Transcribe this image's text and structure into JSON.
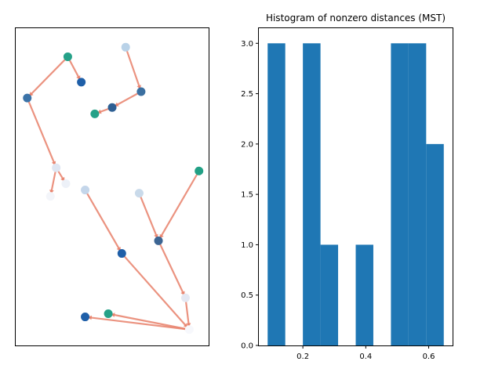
{
  "chart_data": [
    {
      "type": "scatter",
      "title": "",
      "xticks": [],
      "yticks": [],
      "points": [
        {
          "x": 0.57,
          "y": 0.94,
          "color": "#b9d2e8"
        },
        {
          "x": 0.27,
          "y": 0.91,
          "color": "#25a188"
        },
        {
          "x": 0.34,
          "y": 0.83,
          "color": "#1f5fa8"
        },
        {
          "x": 0.06,
          "y": 0.78,
          "color": "#3b73a8"
        },
        {
          "x": 0.65,
          "y": 0.8,
          "color": "#3b6fa0"
        },
        {
          "x": 0.5,
          "y": 0.75,
          "color": "#2e5f93"
        },
        {
          "x": 0.41,
          "y": 0.73,
          "color": "#25a188"
        },
        {
          "x": 0.95,
          "y": 0.55,
          "color": "#22a085"
        },
        {
          "x": 0.21,
          "y": 0.56,
          "color": "#dfe6f2"
        },
        {
          "x": 0.26,
          "y": 0.51,
          "color": "#edf1f8"
        },
        {
          "x": 0.18,
          "y": 0.47,
          "color": "#f3f5fa"
        },
        {
          "x": 0.36,
          "y": 0.49,
          "color": "#c4d6ea"
        },
        {
          "x": 0.64,
          "y": 0.48,
          "color": "#c9daea"
        },
        {
          "x": 0.74,
          "y": 0.33,
          "color": "#3c6593"
        },
        {
          "x": 0.55,
          "y": 0.29,
          "color": "#1f5fa8"
        },
        {
          "x": 0.88,
          "y": 0.15,
          "color": "#e4e8f3"
        },
        {
          "x": 0.9,
          "y": 0.05,
          "color": "#f7f8fc"
        },
        {
          "x": 0.36,
          "y": 0.09,
          "color": "#1f5fa8"
        },
        {
          "x": 0.48,
          "y": 0.1,
          "color": "#25a188"
        }
      ],
      "edges": [
        [
          1,
          2
        ],
        [
          1,
          3
        ],
        [
          3,
          8
        ],
        [
          8,
          9
        ],
        [
          8,
          10
        ],
        [
          0,
          4
        ],
        [
          4,
          5
        ],
        [
          5,
          6
        ],
        [
          11,
          14
        ],
        [
          14,
          16
        ],
        [
          16,
          17
        ],
        [
          16,
          18
        ],
        [
          7,
          13
        ],
        [
          12,
          13
        ],
        [
          13,
          15
        ],
        [
          15,
          16
        ]
      ],
      "edge_color": "#e8806a"
    },
    {
      "type": "bar",
      "title": "Histogram of nonzero distances (MST)",
      "bins": [
        {
          "x0": 0.088,
          "x1": 0.144,
          "count": 3
        },
        {
          "x0": 0.144,
          "x1": 0.2,
          "count": 0
        },
        {
          "x0": 0.2,
          "x1": 0.256,
          "count": 3
        },
        {
          "x0": 0.256,
          "x1": 0.312,
          "count": 1
        },
        {
          "x0": 0.312,
          "x1": 0.368,
          "count": 0
        },
        {
          "x0": 0.368,
          "x1": 0.424,
          "count": 1
        },
        {
          "x0": 0.424,
          "x1": 0.48,
          "count": 0
        },
        {
          "x0": 0.48,
          "x1": 0.536,
          "count": 3
        },
        {
          "x0": 0.536,
          "x1": 0.592,
          "count": 3
        },
        {
          "x0": 0.592,
          "x1": 0.648,
          "count": 2
        }
      ],
      "xlim": [
        0.06,
        0.676
      ],
      "ylim": [
        0,
        3.15
      ],
      "xticks": [
        "0.2",
        "0.4",
        "0.6"
      ],
      "xtick_values": [
        0.2,
        0.4,
        0.6
      ],
      "yticks": [
        "0.0",
        "0.5",
        "1.0",
        "1.5",
        "2.0",
        "2.5",
        "3.0"
      ],
      "ytick_values": [
        0,
        0.5,
        1.0,
        1.5,
        2.0,
        2.5,
        3.0
      ],
      "bar_color": "#1f77b4"
    }
  ]
}
